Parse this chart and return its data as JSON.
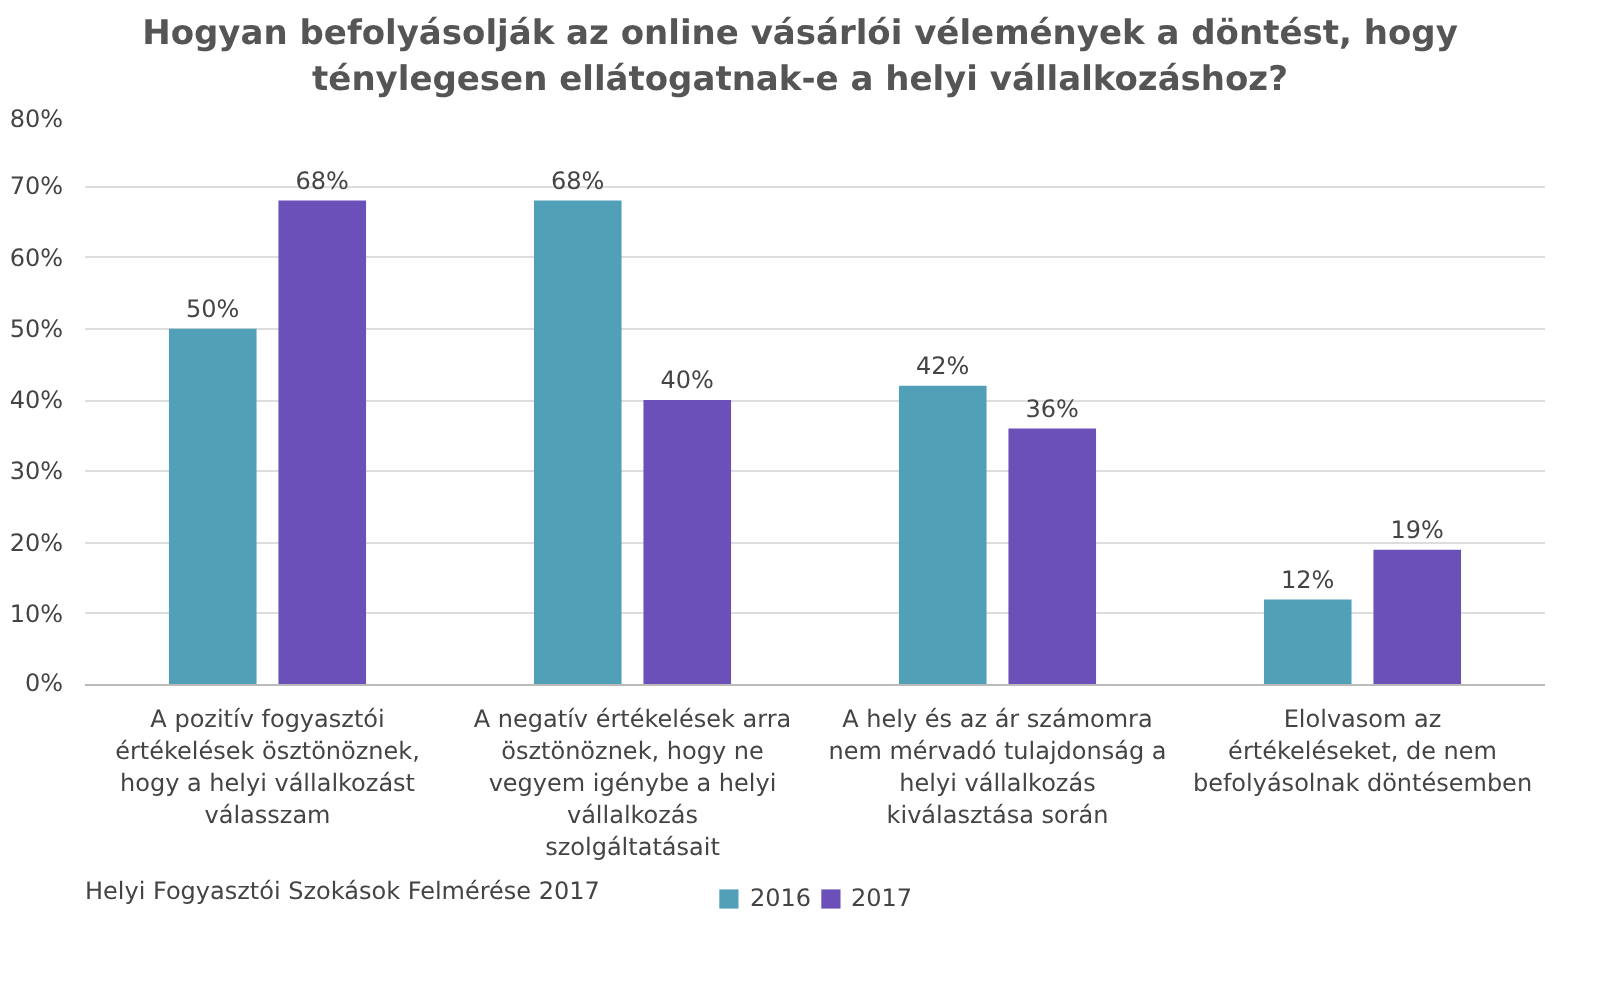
{
  "chart_data": {
    "type": "bar",
    "title": "Hogyan befolyásolják az online vásárlói vélemények a döntést, hogy ténylegesen ellátogatnak-e a helyi vállalkozáshoz?",
    "categories": [
      "A pozitív fogyasztói értékelések ösztönöznek, hogy a helyi vállalkozást válasszam",
      "A negatív értékelések arra ösztönöznek, hogy ne vegyem igénybe a helyi vállalkozás szolgáltatásait",
      "A hely és az ár számomra nem mérvadó tulajdonság a helyi vállalkozás kiválasztása során",
      "Elolvasom az értékeléseket, de nem befolyásolnak döntésemben"
    ],
    "series": [
      {
        "name": "2016",
        "color": "#52a0b8",
        "values": [
          50,
          68,
          42,
          12
        ],
        "value_labels": [
          "50%",
          "68%",
          "42%",
          "12%"
        ]
      },
      {
        "name": "2017",
        "color": "#6a50b8",
        "values": [
          68,
          40,
          36,
          19
        ],
        "value_labels": [
          "68%",
          "40%",
          "36%",
          "19%"
        ]
      }
    ],
    "ylim": [
      0,
      80
    ],
    "yticks": [
      {
        "value": 0,
        "label": "0%"
      },
      {
        "value": 10,
        "label": "10%"
      },
      {
        "value": 20,
        "label": "20%"
      },
      {
        "value": 30,
        "label": "30%"
      },
      {
        "value": 40,
        "label": "40%"
      },
      {
        "value": 50,
        "label": "50%"
      },
      {
        "value": 60,
        "label": "60%"
      },
      {
        "value": 70,
        "label": "70%"
      },
      {
        "value": 80,
        "label": "80%"
      }
    ],
    "grid": "y",
    "legend": "bottom",
    "annotations": [
      "Helyi Fogyasztói Szokások Felmérése 2017"
    ]
  }
}
